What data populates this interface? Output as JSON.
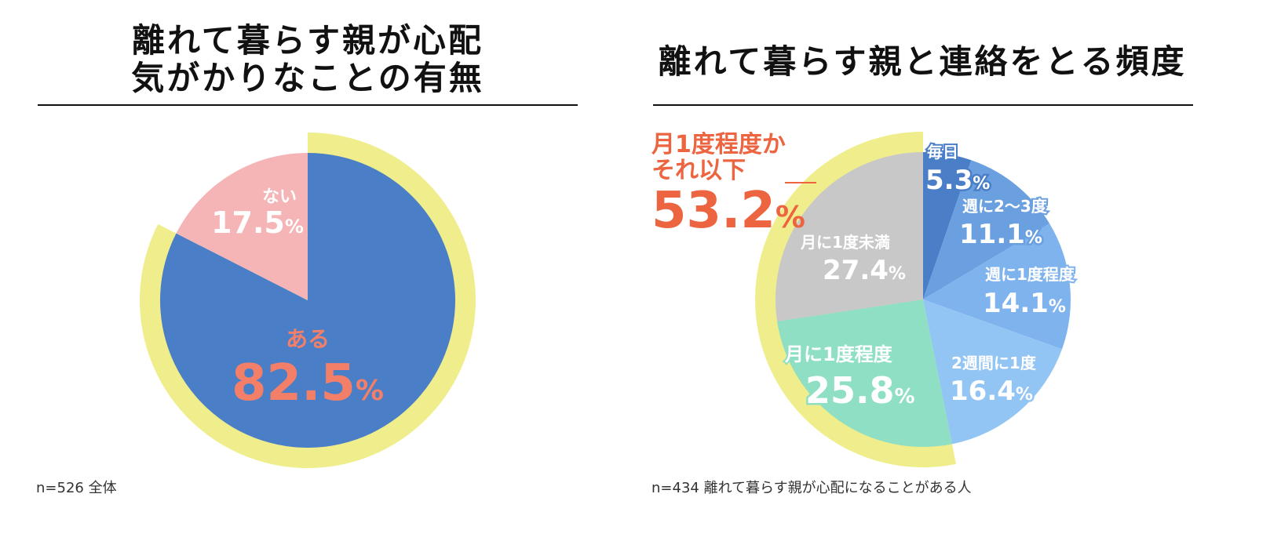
{
  "left": {
    "title_line1": "離れて暮らす親が心配",
    "title_line2": "気がかりなことの有無",
    "note": "n=526 全体"
  },
  "right": {
    "title": "離れて暮らす親と連絡をとる頻度",
    "note": "n=434 離れて暮らす親が心配になることがある人",
    "callout_line1": "月1度程度か",
    "callout_line2": "それ以下",
    "callout_value": "53.2",
    "callout_unit": "%"
  },
  "chart_data": [
    {
      "type": "pie",
      "title": "離れて暮らす親が心配 気がかりなことの有無",
      "categories": [
        "ある",
        "ない"
      ],
      "values": [
        82.5,
        17.5
      ],
      "value_labels": [
        "82.5",
        "17.5"
      ],
      "unit": "%",
      "colors": [
        "#4a7ec6",
        "#f5b5b7"
      ],
      "label_colors": [
        "#f47f68",
        "#ffffff"
      ],
      "highlight_ring_color": "#f0ee8c"
    },
    {
      "type": "pie",
      "title": "離れて暮らす親と連絡をとる頻度",
      "categories": [
        "毎日",
        "週に2～3度",
        "週に1度程度",
        "2週間に1度",
        "月に1度程度",
        "月に1度未満"
      ],
      "values": [
        5.3,
        11.1,
        14.1,
        16.4,
        25.8,
        27.4
      ],
      "value_labels": [
        "5.3",
        "11.1",
        "14.1",
        "16.4",
        "25.8",
        "27.4"
      ],
      "unit": "%",
      "colors": [
        "#4a7ec6",
        "#6a9fe0",
        "#7fb3ee",
        "#93c5f4",
        "#8fdfc4",
        "#c8c8c8"
      ],
      "highlight_ring_color": "#f0ee8c"
    }
  ]
}
